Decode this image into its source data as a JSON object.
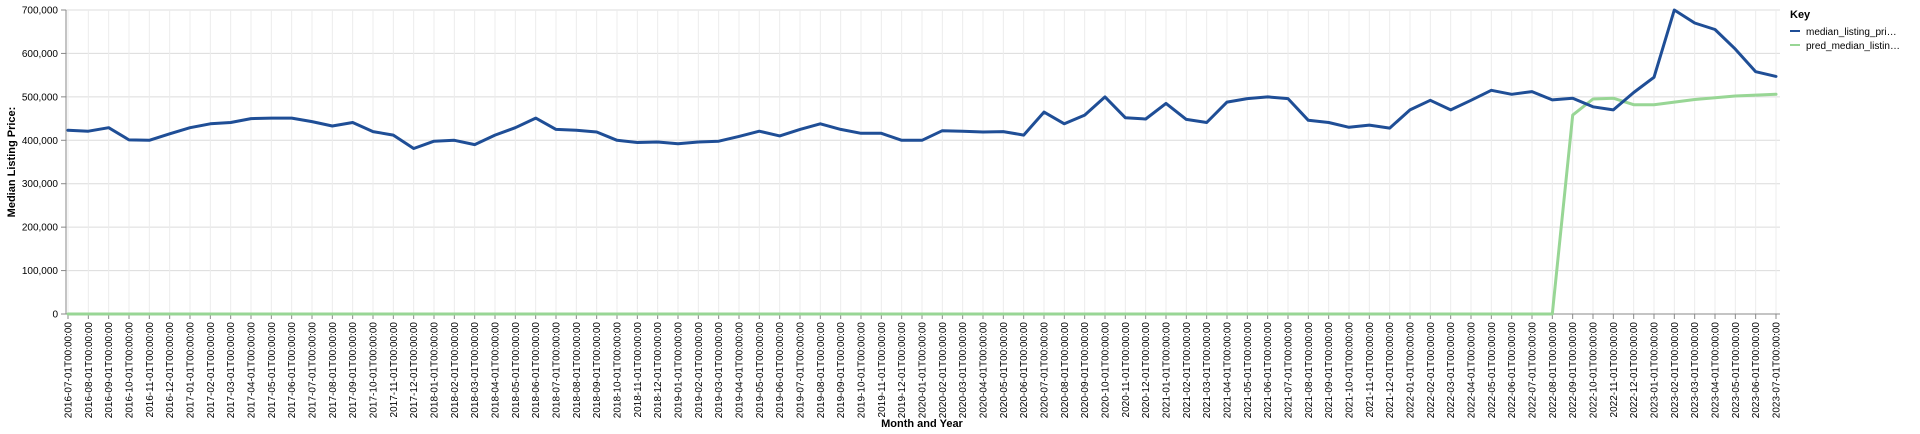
{
  "chart_data": {
    "type": "line",
    "title": "",
    "xlabel": "Month and Year",
    "ylabel": "Median Listing Price:",
    "ylim": [
      0,
      700000
    ],
    "y_ticks": [
      "0",
      "100,000",
      "200,000",
      "300,000",
      "400,000",
      "500,000",
      "600,000",
      "700,000"
    ],
    "grid": true,
    "legend": {
      "title": "Key",
      "placement": "top-right",
      "entries": [
        "median_listing_pri…",
        "pred_median_listin…"
      ]
    },
    "categories": [
      "2016-07-01T00:00:00",
      "2016-08-01T00:00:00",
      "2016-09-01T00:00:00",
      "2016-10-01T00:00:00",
      "2016-11-01T00:00:00",
      "2016-12-01T00:00:00",
      "2017-01-01T00:00:00",
      "2017-02-01T00:00:00",
      "2017-03-01T00:00:00",
      "2017-04-01T00:00:00",
      "2017-05-01T00:00:00",
      "2017-06-01T00:00:00",
      "2017-07-01T00:00:00",
      "2017-08-01T00:00:00",
      "2017-09-01T00:00:00",
      "2017-10-01T00:00:00",
      "2017-11-01T00:00:00",
      "2017-12-01T00:00:00",
      "2018-01-01T00:00:00",
      "2018-02-01T00:00:00",
      "2018-03-01T00:00:00",
      "2018-04-01T00:00:00",
      "2018-05-01T00:00:00",
      "2018-06-01T00:00:00",
      "2018-07-01T00:00:00",
      "2018-08-01T00:00:00",
      "2018-09-01T00:00:00",
      "2018-10-01T00:00:00",
      "2018-11-01T00:00:00",
      "2018-12-01T00:00:00",
      "2019-01-01T00:00:00",
      "2019-02-01T00:00:00",
      "2019-03-01T00:00:00",
      "2019-04-01T00:00:00",
      "2019-05-01T00:00:00",
      "2019-06-01T00:00:00",
      "2019-07-01T00:00:00",
      "2019-08-01T00:00:00",
      "2019-09-01T00:00:00",
      "2019-10-01T00:00:00",
      "2019-11-01T00:00:00",
      "2019-12-01T00:00:00",
      "2020-01-01T00:00:00",
      "2020-02-01T00:00:00",
      "2020-03-01T00:00:00",
      "2020-04-01T00:00:00",
      "2020-05-01T00:00:00",
      "2020-06-01T00:00:00",
      "2020-07-01T00:00:00",
      "2020-08-01T00:00:00",
      "2020-09-01T00:00:00",
      "2020-10-01T00:00:00",
      "2020-11-01T00:00:00",
      "2020-12-01T00:00:00",
      "2021-01-01T00:00:00",
      "2021-02-01T00:00:00",
      "2021-03-01T00:00:00",
      "2021-04-01T00:00:00",
      "2021-05-01T00:00:00",
      "2021-06-01T00:00:00",
      "2021-07-01T00:00:00",
      "2021-08-01T00:00:00",
      "2021-09-01T00:00:00",
      "2021-10-01T00:00:00",
      "2021-11-01T00:00:00",
      "2021-12-01T00:00:00",
      "2022-01-01T00:00:00",
      "2022-02-01T00:00:00",
      "2022-03-01T00:00:00",
      "2022-04-01T00:00:00",
      "2022-05-01T00:00:00",
      "2022-06-01T00:00:00",
      "2022-07-01T00:00:00",
      "2022-08-01T00:00:00",
      "2022-09-01T00:00:00",
      "2022-10-01T00:00:00",
      "2022-11-01T00:00:00",
      "2022-12-01T00:00:00",
      "2023-01-01T00:00:00",
      "2023-02-01T00:00:00",
      "2023-03-01T00:00:00",
      "2023-04-01T00:00:00",
      "2023-05-01T00:00:00",
      "2023-06-01T00:00:00",
      "2023-07-01T00:00:00"
    ],
    "tick_labels": [
      "2016-07-01T00:00:00",
      "2016-08-01T00:00:00",
      "2016-09-01T00:00:00",
      "2016-10-01T00:00:00",
      "2016-11-01T00:00:00",
      "2016-12-01T00:00:00",
      "2017-01-01T00:00:00",
      "2017-02-01T00:00:00",
      "2017-03-01T00:00:00",
      "2017-04-01T00:00:00",
      "2017-05-01T00:00:00",
      "2017-06-01T00:00:00",
      "2017-07-01T00:00:00",
      "2017-08-01T00:00:00",
      "2017-09-01T00:00:00",
      "2017-10-01T00:00:00",
      "2017-11-01T00:00:00",
      "2017-12-01T00:00:00",
      "2018-01-01T00:00:00",
      "2018-02-01T00:00:00",
      "2018-03-01T00:00:00",
      "2018-04-01T00:00:00",
      "2018-05-01T00:00:00",
      "2018-06-01T00:00:00",
      "2018-07-01T00:00:00",
      "2018-08-01T00:00:00",
      "2018-09-01T00:00:00",
      "2018-10-01T00:00:00",
      "2018-11-01T00:00:00",
      "2018-12-01T00:00:00",
      "2019-01-01T00:00:00",
      "2019-02-01T00:00:00",
      "2019-03-01T00:00:00",
      "2019-04-01T00:00:00",
      "2019-05-01T00:00:00",
      "2019-06-01T00:00:00",
      "2019-07-01T00:00:00",
      "2019-08-01T00:00:00",
      "2019-09-01T00:00:00",
      "2019-10-01T00:00:00",
      "2019-11-01T00:00:00",
      "2019-12-01T00:00:00",
      "2020-01-01T00:00:00",
      "2020-02-01T00:00:00",
      "2020-03-01T00:00:00",
      "2020-04-01T00:00:00",
      "2020-05-01T00:00:00",
      "2020-06-01T00:00:00",
      "2020-07-01T00:00:00",
      "2020-08-01T00:00:00",
      "2020-09-01T00:00:00",
      "2020-10-01T00:00:00",
      "2020-11-01T00:00:00",
      "2020-12-01T00:00:00",
      "2021-01-01T00:00:00",
      "2021-02-01T00:00:00",
      "2021-03-01T00:00:00",
      "2021-04-01T00:00:00",
      "2021-05-01T00:00:00",
      "2021-06-01T00:00:00",
      "2021-07-01T00:00:00",
      "2021-08-01T00:00:00",
      "2021-09-01T00:00:00",
      "2021-10-01T00:00:00",
      "2021-11-01T00:00:00",
      "2021-12-01T00:00:00",
      "2022-01-01T00:00:00",
      "2022-02-01T00:00:00",
      "2022-03-01T00:00:00",
      "2022-04-01T00:00:00",
      "2022-05-01T00:00:00",
      "2022-06-01T00:00:00",
      "2022-07-01T00:00:00",
      "2022-08-01T00:00:00",
      "2022-09-01T00:00:00",
      "2022-10-01T00:00:00",
      "2022-11-01T00:00:00",
      "2022-12-01T00:00:00",
      "2023-01-01T00:00:00",
      "2023-02-01T00:00:00",
      "2023-03-01T00:00:00",
      "2023-04-01T00:00:00",
      "2023-05-01T00:00:00",
      "2023-06-01T00:00:00",
      "2023-07-01T00:00:00"
    ],
    "series": [
      {
        "name": "median_listing_pri…",
        "color": "#1f4e96",
        "values": [
          423000,
          421000,
          429000,
          401000,
          400000,
          415000,
          429000,
          438000,
          441000,
          450000,
          451000,
          451000,
          443000,
          433000,
          441000,
          420000,
          412000,
          381000,
          398000,
          400000,
          390000,
          412000,
          429000,
          451000,
          425000,
          423000,
          419000,
          400000,
          395000,
          396000,
          392000,
          396000,
          398000,
          409000,
          421000,
          410000,
          425000,
          438000,
          425000,
          416000,
          416000,
          400000,
          400000,
          422000,
          421000,
          419000,
          420000,
          412000,
          465000,
          438000,
          458000,
          500000,
          452000,
          449000,
          485000,
          448000,
          441000,
          488000,
          496000,
          500000,
          496000,
          446000,
          441000,
          430000,
          435000,
          428000,
          470000,
          492000,
          470000,
          492000,
          515000,
          506000,
          512000,
          493000,
          497000,
          477000,
          470000,
          510000,
          545000,
          700000,
          670000,
          655000,
          610000,
          558000,
          547000
        ]
      },
      {
        "name": "pred_median_listin…",
        "color": "#98d695",
        "values": [
          0,
          0,
          0,
          0,
          0,
          0,
          0,
          0,
          0,
          0,
          0,
          0,
          0,
          0,
          0,
          0,
          0,
          0,
          0,
          0,
          0,
          0,
          0,
          0,
          0,
          0,
          0,
          0,
          0,
          0,
          0,
          0,
          0,
          0,
          0,
          0,
          0,
          0,
          0,
          0,
          0,
          0,
          0,
          0,
          0,
          0,
          0,
          0,
          0,
          0,
          0,
          0,
          0,
          0,
          0,
          0,
          0,
          0,
          0,
          0,
          0,
          0,
          0,
          0,
          0,
          0,
          0,
          0,
          0,
          0,
          0,
          0,
          0,
          0,
          458000,
          495000,
          497000,
          482000,
          482000,
          488000,
          494000,
          498000,
          502000,
          504000,
          506000
        ]
      }
    ]
  }
}
